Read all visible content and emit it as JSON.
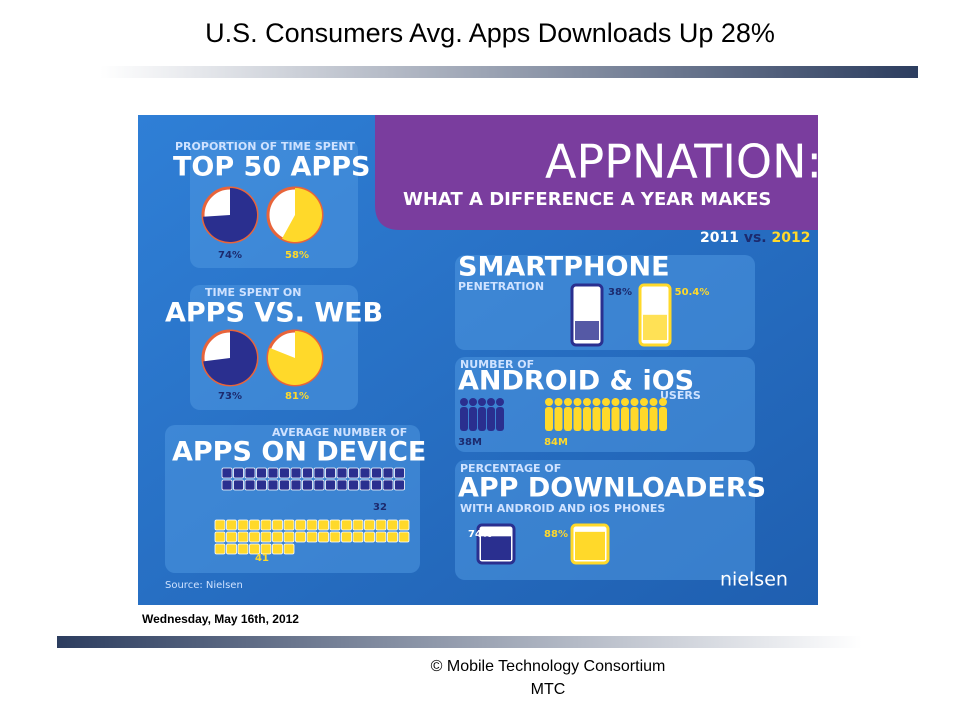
{
  "header": {
    "title": "U.S. Consumers Avg. Apps Downloads Up 28%"
  },
  "infographic": {
    "headline": "APPNATION:",
    "subheadline": "WHAT A DIFFERENCE A YEAR MAKES",
    "years": {
      "first": "2011",
      "separator": "vs.",
      "second": "2012"
    },
    "top50": {
      "kicker": "PROPORTION OF TIME SPENT",
      "heading": "TOP 50 APPS",
      "values": [
        {
          "value": 74,
          "label": "74%"
        },
        {
          "value": 58,
          "label": "58%"
        }
      ]
    },
    "appsVsWeb": {
      "kicker": "TIME SPENT ON",
      "heading": "APPS VS. WEB",
      "values": [
        {
          "value": 73,
          "label": "73%"
        },
        {
          "value": 81,
          "label": "81%"
        }
      ]
    },
    "appsOnDevice": {
      "kicker": "AVERAGE NUMBER OF",
      "heading": "APPS ON DEVICE",
      "values": [
        32,
        41
      ]
    },
    "smartphone": {
      "heading": "SMARTPHONE",
      "kicker": "PENETRATION",
      "values": [
        {
          "value": 38,
          "label": "38%"
        },
        {
          "value": 50.4,
          "label": "50.4%"
        }
      ]
    },
    "users": {
      "kicker": "NUMBER OF",
      "heading": "ANDROID & iOS",
      "sub": "USERS",
      "values": [
        {
          "value": 38,
          "label": "38M"
        },
        {
          "value": 84,
          "label": "84M"
        }
      ]
    },
    "downloaders": {
      "kicker": "PERCENTAGE OF",
      "heading": "APP DOWNLOADERS",
      "sub": "WITH ANDROID AND iOS PHONES",
      "values": [
        {
          "value": 74,
          "label": "74%"
        },
        {
          "value": 88,
          "label": "88%"
        }
      ]
    },
    "source": "Source: Nielsen",
    "brand": "nielsen"
  },
  "date": "Wednesday, May 16th, 2012",
  "footer": {
    "line1": "© Mobile Technology Consortium",
    "line2": "MTC"
  }
}
